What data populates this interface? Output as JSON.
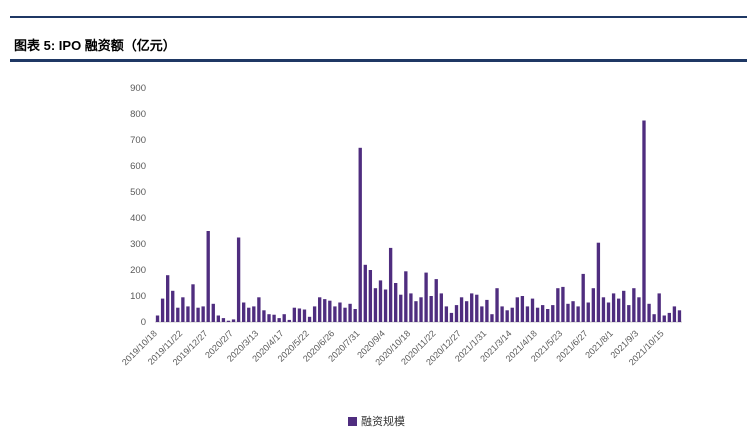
{
  "header": {
    "title": "图表 5: IPO 融资额（亿元）"
  },
  "chart_data": {
    "type": "bar",
    "title": "IPO 融资额（亿元）",
    "legend_label": "融资规模",
    "legend_position": "bottom-center",
    "grid": false,
    "ylim": [
      0,
      900
    ],
    "ytick_step": 100,
    "yticks": [
      0,
      100,
      200,
      300,
      400,
      500,
      600,
      700,
      800,
      900
    ],
    "bar_color": "#4f2d7f",
    "axis_line_color": "#c9c9c9",
    "tick_text_color": "#595959",
    "label_every": 5,
    "categories": [
      "2019/10/18",
      "2019/11/22",
      "2019/12/27",
      "2020/2/7",
      "2020/3/13",
      "2020/4/17",
      "2020/5/22",
      "2020/6/26",
      "2020/7/31",
      "2020/9/4",
      "2020/10/18",
      "2020/11/22",
      "2020/12/27",
      "2021/1/31",
      "2021/3/14",
      "2021/4/18",
      "2021/5/23",
      "2021/6/27",
      "2021/8/1",
      "2021/9/3",
      "2021/10/15"
    ],
    "values": [
      25,
      90,
      180,
      120,
      55,
      95,
      60,
      145,
      55,
      60,
      350,
      70,
      25,
      15,
      5,
      10,
      325,
      75,
      55,
      60,
      95,
      45,
      30,
      28,
      15,
      30,
      8,
      55,
      52,
      48,
      20,
      60,
      95,
      88,
      82,
      60,
      75,
      55,
      70,
      50,
      670,
      220,
      200,
      130,
      160,
      125,
      285,
      150,
      105,
      195,
      110,
      80,
      95,
      190,
      100,
      165,
      110,
      60,
      35,
      65,
      95,
      80,
      110,
      105,
      60,
      85,
      30,
      130,
      60,
      45,
      55,
      95,
      100,
      60,
      90,
      55,
      65,
      50,
      65,
      130,
      135,
      70,
      80,
      60,
      185,
      75,
      130,
      305,
      95,
      75,
      110,
      90,
      120,
      65,
      130,
      95,
      775,
      70,
      30,
      110,
      25,
      35,
      60,
      45
    ]
  },
  "colors": {
    "divider_navy": "#1f3864",
    "bar_purple": "#4f2d7f",
    "tick_gray": "#595959"
  }
}
